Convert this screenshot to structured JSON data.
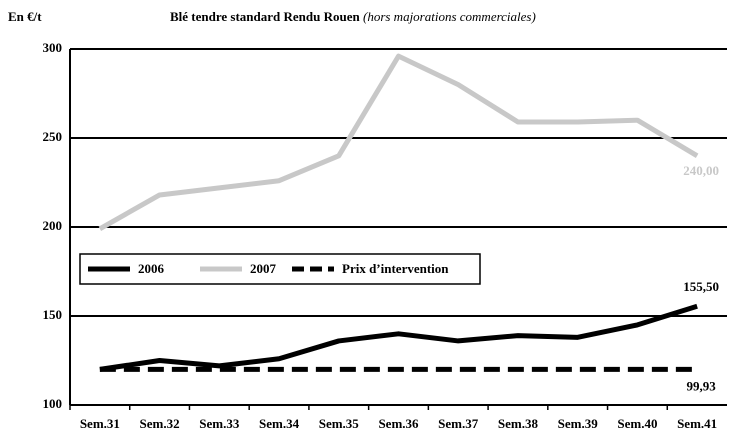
{
  "chart_data": {
    "type": "line",
    "title": "Blé tendre standard Rendu Rouen",
    "subtitle": "(hors majorations commerciales)",
    "y_label": "En €/t",
    "categories": [
      "Sem.31",
      "Sem.32",
      "Sem.33",
      "Sem.34",
      "Sem.35",
      "Sem.36",
      "Sem.37",
      "Sem.38",
      "Sem.39",
      "Sem.40",
      "Sem.41"
    ],
    "series": [
      {
        "name": "2006",
        "color": "#000000",
        "dashed": false,
        "values": [
          120,
          125,
          122,
          126,
          136,
          140,
          136,
          139,
          138,
          145,
          155.5
        ],
        "value_labels": [
          null,
          null,
          null,
          null,
          null,
          null,
          null,
          null,
          null,
          null,
          "155,50"
        ]
      },
      {
        "name": "2007",
        "color": "#c8c8c8",
        "dashed": false,
        "values": [
          199,
          218,
          222,
          226,
          240,
          296,
          280,
          259,
          259,
          260,
          240
        ],
        "value_labels": [
          null,
          null,
          null,
          null,
          null,
          null,
          null,
          null,
          null,
          null,
          "240,00"
        ]
      },
      {
        "name": "Prix d’intervention",
        "color": "#000000",
        "dashed": true,
        "values": [
          120,
          120,
          120,
          120,
          120,
          120,
          120,
          120,
          120,
          120,
          120
        ]
      }
    ],
    "annotations": [
      "99,93"
    ],
    "ylim": [
      100,
      300
    ],
    "yticks": [
      100,
      150,
      200,
      250,
      300
    ],
    "grid": true,
    "legend": "middle-left"
  }
}
